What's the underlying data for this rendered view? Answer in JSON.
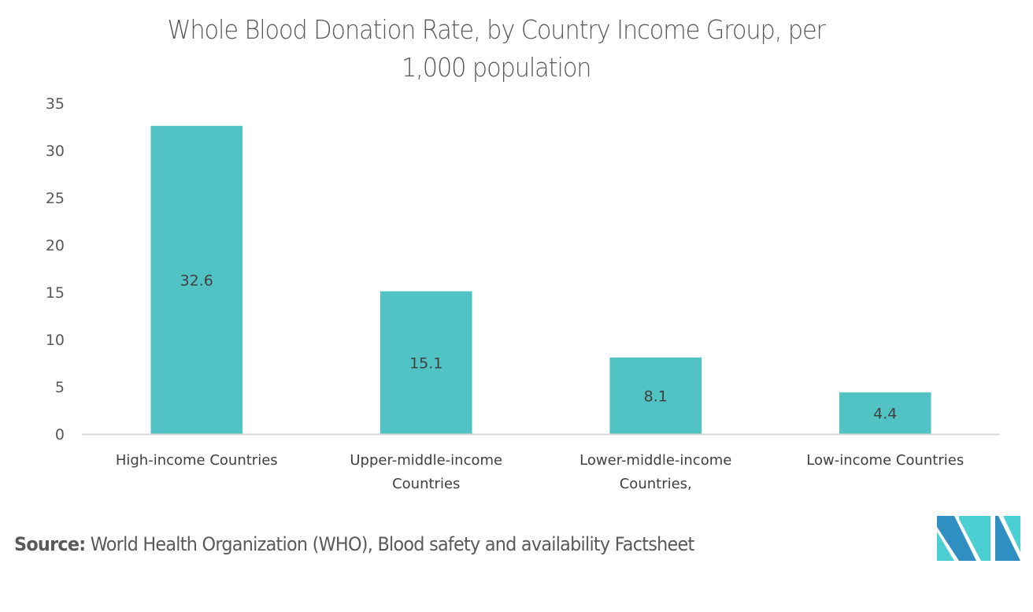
{
  "title_lines": [
    "Whole Blood Donation Rate, by Country Income Group, per",
    "1,000 population"
  ],
  "source": {
    "label": "Source:",
    "text": " World Health Organization (WHO), Blood safety and availability Factsheet"
  },
  "logo": {
    "icon": "mordor-intelligence-logo-icon",
    "colors": [
      "#2e8fc0",
      "#4bcfd2"
    ]
  },
  "colors": {
    "bar": "#52c3c5",
    "axis": "#d9d9d9",
    "text": "#595959"
  },
  "chart_data": {
    "type": "bar",
    "title": "Whole Blood Donation Rate, by Country Income Group, per 1,000 population",
    "xlabel": "",
    "ylabel": "",
    "categories": [
      [
        "High-income Countries"
      ],
      [
        "Upper-middle-income",
        "Countries"
      ],
      [
        "Lower-middle-income",
        "Countries,"
      ],
      [
        "Low-income Countries"
      ]
    ],
    "values": [
      32.6,
      15.1,
      8.1,
      4.4
    ],
    "data_labels": [
      "32.6",
      "15.1",
      "8.1",
      "4.4"
    ],
    "ylim": [
      0,
      35
    ],
    "yticks": [
      0,
      5,
      10,
      15,
      20,
      25,
      30,
      35
    ],
    "grid": false,
    "legend": "none"
  }
}
